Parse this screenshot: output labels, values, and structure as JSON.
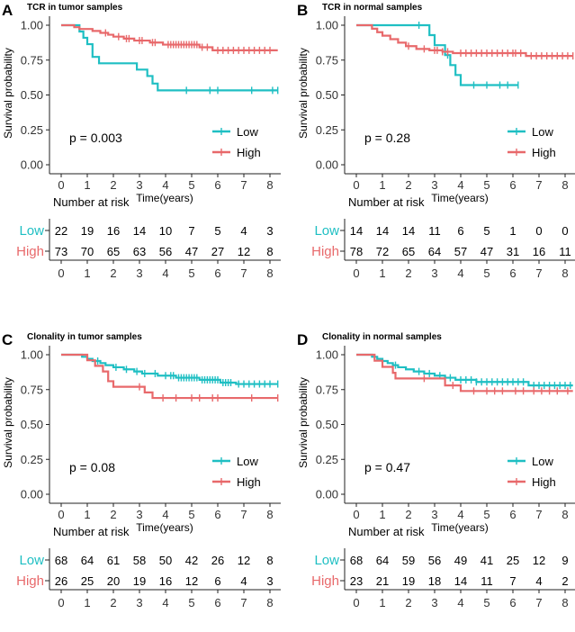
{
  "figure": {
    "time_label": "Time(years)",
    "y_label": "Survival probability",
    "risk_title": "Number at risk"
  },
  "chart_data": [
    {
      "panel": "A",
      "type": "line",
      "subtype": "kaplan-meier",
      "title": "TCR in tumor samples",
      "xlabel": "Time(years)",
      "ylabel": "Survival probability",
      "xlim": [
        -0.4,
        8.4
      ],
      "ylim": [
        0,
        1
      ],
      "x_ticks": [
        0,
        1,
        2,
        3,
        4,
        5,
        6,
        7,
        8
      ],
      "y_ticks": [
        "0.00",
        "0.25",
        "0.50",
        "0.75",
        "1.00"
      ],
      "pvalue": "p = 0.003",
      "legend": [
        "Low",
        "High"
      ],
      "series": [
        {
          "name": "Low",
          "color": "#1fbfc3",
          "steps": [
            [
              0,
              1.0
            ],
            [
              0.7,
              0.955
            ],
            [
              0.85,
              0.91
            ],
            [
              1.0,
              0.864
            ],
            [
              1.2,
              0.773
            ],
            [
              1.45,
              0.727
            ],
            [
              2.9,
              0.682
            ],
            [
              3.3,
              0.636
            ],
            [
              3.5,
              0.582
            ],
            [
              3.7,
              0.533
            ],
            [
              8.3,
              0.533
            ]
          ],
          "censor": [
            4.8,
            5.7,
            6.0,
            7.3,
            8.1,
            8.3
          ]
        },
        {
          "name": "High",
          "color": "#e8696b",
          "steps": [
            [
              0,
              1.0
            ],
            [
              0.5,
              0.986
            ],
            [
              0.7,
              0.973
            ],
            [
              1.2,
              0.959
            ],
            [
              1.5,
              0.945
            ],
            [
              1.8,
              0.932
            ],
            [
              2.0,
              0.918
            ],
            [
              2.4,
              0.904
            ],
            [
              2.8,
              0.89
            ],
            [
              3.4,
              0.876
            ],
            [
              3.9,
              0.861
            ],
            [
              5.3,
              0.842
            ],
            [
              5.8,
              0.82
            ],
            [
              8.3,
              0.82
            ]
          ],
          "censor": [
            1.7,
            2.2,
            2.5,
            2.6,
            3.0,
            3.1,
            3.5,
            3.6,
            4.1,
            4.2,
            4.3,
            4.4,
            4.5,
            4.6,
            4.7,
            4.8,
            4.9,
            5.0,
            5.1,
            5.2,
            5.4,
            5.6,
            6.0,
            6.2,
            6.4,
            6.6,
            6.8,
            7.0,
            7.2,
            7.4,
            7.6,
            7.8,
            8.0
          ]
        }
      ],
      "risk_table": {
        "times": [
          0,
          1,
          2,
          3,
          4,
          5,
          6,
          7,
          8
        ],
        "rows": [
          {
            "name": "Low",
            "color": "#1fbfc3",
            "values": [
              "22",
              "19",
              "16",
              "14",
              "10",
              "7",
              "5",
              "4",
              "3"
            ]
          },
          {
            "name": "High",
            "color": "#e8696b",
            "values": [
              "73",
              "70",
              "65",
              "63",
              "56",
              "47",
              "27",
              "12",
              "8"
            ]
          }
        ]
      }
    },
    {
      "panel": "B",
      "type": "line",
      "subtype": "kaplan-meier",
      "title": "TCR in normal samples",
      "xlabel": "Time(years)",
      "ylabel": "Survival probability",
      "xlim": [
        -0.4,
        8.4
      ],
      "ylim": [
        0,
        1
      ],
      "x_ticks": [
        0,
        1,
        2,
        3,
        4,
        5,
        6,
        7,
        8
      ],
      "y_ticks": [
        "0.00",
        "0.25",
        "0.50",
        "0.75",
        "1.00"
      ],
      "pvalue": "p = 0.28",
      "legend": [
        "Low",
        "High"
      ],
      "series": [
        {
          "name": "Low",
          "color": "#1fbfc3",
          "steps": [
            [
              0,
              1.0
            ],
            [
              2.8,
              0.929
            ],
            [
              3.0,
              0.857
            ],
            [
              3.4,
              0.786
            ],
            [
              3.6,
              0.714
            ],
            [
              3.8,
              0.643
            ],
            [
              4.0,
              0.571
            ],
            [
              6.2,
              0.571
            ]
          ],
          "censor": [
            2.4,
            3.5,
            4.5,
            5.0,
            5.5,
            5.8,
            6.2
          ]
        },
        {
          "name": "High",
          "color": "#e8696b",
          "steps": [
            [
              0,
              1.0
            ],
            [
              0.6,
              0.975
            ],
            [
              0.8,
              0.95
            ],
            [
              1.0,
              0.925
            ],
            [
              1.3,
              0.9
            ],
            [
              1.6,
              0.875
            ],
            [
              1.9,
              0.85
            ],
            [
              2.3,
              0.83
            ],
            [
              2.8,
              0.82
            ],
            [
              3.3,
              0.81
            ],
            [
              3.7,
              0.8
            ],
            [
              6.5,
              0.78
            ],
            [
              8.3,
              0.78
            ]
          ],
          "censor": [
            2.0,
            2.6,
            3.0,
            3.1,
            3.3,
            3.5,
            4.0,
            4.2,
            4.4,
            4.6,
            4.8,
            5.0,
            5.2,
            5.4,
            5.6,
            5.8,
            6.0,
            6.1,
            6.3,
            6.7,
            6.9,
            7.1,
            7.3,
            7.5,
            7.7,
            7.9,
            8.1,
            8.3
          ]
        }
      ],
      "risk_table": {
        "times": [
          0,
          1,
          2,
          3,
          4,
          5,
          6,
          7,
          8
        ],
        "rows": [
          {
            "name": "Low",
            "color": "#1fbfc3",
            "values": [
              "14",
              "14",
              "14",
              "11",
              "6",
              "5",
              "1",
              "0",
              "0"
            ]
          },
          {
            "name": "High",
            "color": "#e8696b",
            "values": [
              "78",
              "72",
              "65",
              "64",
              "57",
              "47",
              "31",
              "16",
              "11"
            ]
          }
        ]
      }
    },
    {
      "panel": "C",
      "type": "line",
      "subtype": "kaplan-meier",
      "title": "Clonality in tumor samples",
      "xlabel": "Time(years)",
      "ylabel": "Survival probability",
      "xlim": [
        -0.4,
        8.4
      ],
      "ylim": [
        0,
        1
      ],
      "x_ticks": [
        0,
        1,
        2,
        3,
        4,
        5,
        6,
        7,
        8
      ],
      "y_ticks": [
        "0.00",
        "0.25",
        "0.50",
        "0.75",
        "1.00"
      ],
      "pvalue": "p = 0.08",
      "legend": [
        "Low",
        "High"
      ],
      "series": [
        {
          "name": "Low",
          "color": "#1fbfc3",
          "steps": [
            [
              0,
              1.0
            ],
            [
              0.8,
              0.985
            ],
            [
              1.0,
              0.97
            ],
            [
              1.2,
              0.955
            ],
            [
              1.5,
              0.94
            ],
            [
              1.7,
              0.925
            ],
            [
              2.0,
              0.91
            ],
            [
              2.4,
              0.895
            ],
            [
              2.8,
              0.88
            ],
            [
              3.1,
              0.865
            ],
            [
              3.7,
              0.85
            ],
            [
              4.4,
              0.835
            ],
            [
              5.3,
              0.82
            ],
            [
              6.1,
              0.8
            ],
            [
              6.7,
              0.79
            ],
            [
              8.3,
              0.79
            ]
          ],
          "censor": [
            1.4,
            2.1,
            2.5,
            2.9,
            3.2,
            3.6,
            4.0,
            4.2,
            4.3,
            4.5,
            4.6,
            4.7,
            4.8,
            4.9,
            5.0,
            5.1,
            5.2,
            5.4,
            5.5,
            5.6,
            5.7,
            5.8,
            5.9,
            6.0,
            6.2,
            6.3,
            6.4,
            6.5,
            6.8,
            7.0,
            7.2,
            7.4,
            7.6,
            7.8,
            8.0,
            8.3
          ]
        },
        {
          "name": "High",
          "color": "#e8696b",
          "steps": [
            [
              0,
              1.0
            ],
            [
              1.0,
              0.96
            ],
            [
              1.3,
              0.92
            ],
            [
              1.6,
              0.88
            ],
            [
              1.8,
              0.81
            ],
            [
              2.0,
              0.77
            ],
            [
              3.2,
              0.73
            ],
            [
              3.5,
              0.69
            ],
            [
              8.3,
              0.69
            ]
          ],
          "censor": [
            3.0,
            3.9,
            4.4,
            5.0,
            5.3,
            5.8,
            6.0,
            7.3,
            8.3
          ]
        }
      ],
      "risk_table": {
        "times": [
          0,
          1,
          2,
          3,
          4,
          5,
          6,
          7,
          8
        ],
        "rows": [
          {
            "name": "Low",
            "color": "#1fbfc3",
            "values": [
              "68",
              "64",
              "61",
              "58",
              "50",
              "42",
              "26",
              "12",
              "8"
            ]
          },
          {
            "name": "High",
            "color": "#e8696b",
            "values": [
              "26",
              "25",
              "20",
              "19",
              "16",
              "12",
              "6",
              "4",
              "3"
            ]
          }
        ]
      }
    },
    {
      "panel": "D",
      "type": "line",
      "subtype": "kaplan-meier",
      "title": "Clonality in normal samples",
      "xlabel": "Time(years)",
      "ylabel": "Survival probability",
      "xlim": [
        -0.4,
        8.4
      ],
      "ylim": [
        0,
        1
      ],
      "x_ticks": [
        0,
        1,
        2,
        3,
        4,
        5,
        6,
        7,
        8
      ],
      "y_ticks": [
        "0.00",
        "0.25",
        "0.50",
        "0.75",
        "1.00"
      ],
      "pvalue": "p = 0.47",
      "legend": [
        "Low",
        "High"
      ],
      "series": [
        {
          "name": "Low",
          "color": "#1fbfc3",
          "steps": [
            [
              0,
              1.0
            ],
            [
              0.6,
              0.985
            ],
            [
              0.8,
              0.97
            ],
            [
              1.0,
              0.955
            ],
            [
              1.2,
              0.94
            ],
            [
              1.4,
              0.925
            ],
            [
              1.6,
              0.91
            ],
            [
              1.9,
              0.895
            ],
            [
              2.2,
              0.88
            ],
            [
              2.6,
              0.865
            ],
            [
              3.0,
              0.85
            ],
            [
              3.4,
              0.835
            ],
            [
              3.8,
              0.82
            ],
            [
              4.6,
              0.805
            ],
            [
              6.6,
              0.78
            ],
            [
              8.3,
              0.78
            ]
          ],
          "censor": [
            1.5,
            2.4,
            2.8,
            3.2,
            3.6,
            4.0,
            4.2,
            4.4,
            4.6,
            4.8,
            5.0,
            5.2,
            5.4,
            5.6,
            5.8,
            6.0,
            6.2,
            6.4,
            6.8,
            7.0,
            7.2,
            7.4,
            7.6,
            7.8,
            8.0,
            8.2
          ]
        },
        {
          "name": "High",
          "color": "#e8696b",
          "steps": [
            [
              0,
              1.0
            ],
            [
              0.7,
              0.957
            ],
            [
              1.0,
              0.913
            ],
            [
              1.4,
              0.87
            ],
            [
              1.5,
              0.83
            ],
            [
              3.4,
              0.78
            ],
            [
              4.0,
              0.74
            ],
            [
              8.3,
              0.74
            ]
          ],
          "censor": [
            2.6,
            3.7,
            4.5,
            5.0,
            5.3,
            5.6,
            6.1,
            6.4,
            6.8,
            7.1,
            7.4,
            7.7,
            8.1
          ]
        }
      ],
      "risk_table": {
        "times": [
          0,
          1,
          2,
          3,
          4,
          5,
          6,
          7,
          8
        ],
        "rows": [
          {
            "name": "Low",
            "color": "#1fbfc3",
            "values": [
              "68",
              "64",
              "59",
              "56",
              "49",
              "41",
              "25",
              "12",
              "9"
            ]
          },
          {
            "name": "High",
            "color": "#e8696b",
            "values": [
              "23",
              "21",
              "19",
              "18",
              "14",
              "11",
              "7",
              "4",
              "2"
            ]
          }
        ]
      }
    }
  ]
}
